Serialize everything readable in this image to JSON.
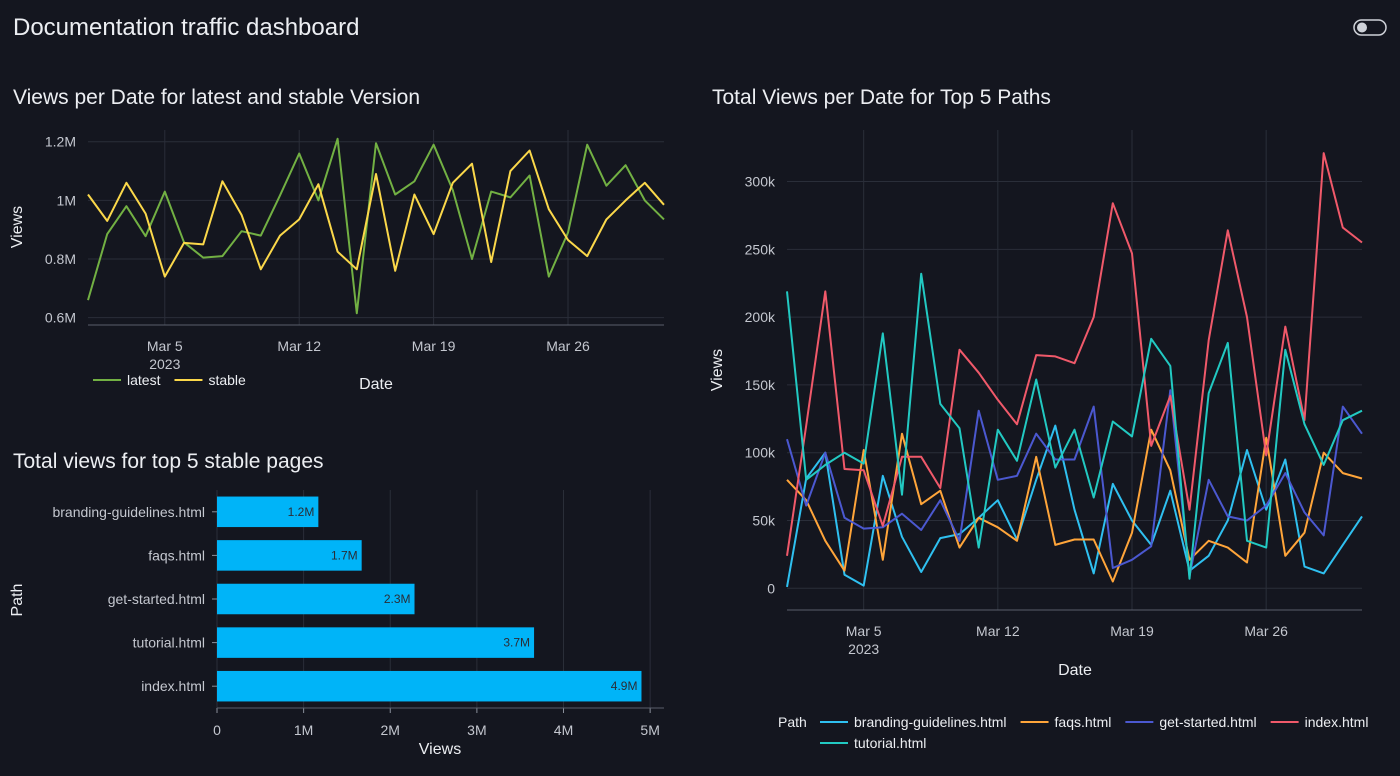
{
  "title": "Documentation traffic dashboard",
  "chart_data": [
    {
      "type": "line",
      "title": "Views per Date for latest and stable Version",
      "xlabel": "Date",
      "ylabel": "Views",
      "x": [
        "2023-03-01",
        "2023-03-02",
        "2023-03-03",
        "2023-03-04",
        "2023-03-05",
        "2023-03-06",
        "2023-03-07",
        "2023-03-08",
        "2023-03-09",
        "2023-03-10",
        "2023-03-11",
        "2023-03-12",
        "2023-03-13",
        "2023-03-14",
        "2023-03-15",
        "2023-03-16",
        "2023-03-17",
        "2023-03-18",
        "2023-03-19",
        "2023-03-20",
        "2023-03-21",
        "2023-03-22",
        "2023-03-23",
        "2023-03-24",
        "2023-03-25",
        "2023-03-26",
        "2023-03-27",
        "2023-03-28",
        "2023-03-29",
        "2023-03-30",
        "2023-03-31"
      ],
      "xlim": [
        "2023-03-01",
        "2023-03-31"
      ],
      "xticks": [
        {
          "value": "2023-03-05",
          "label": "Mar 5\n2023"
        },
        {
          "value": "2023-03-12",
          "label": "Mar 12"
        },
        {
          "value": "2023-03-19",
          "label": "Mar 19"
        },
        {
          "value": "2023-03-26",
          "label": "Mar 26"
        }
      ],
      "ylim": [
        575000,
        1240000
      ],
      "yticks": [
        {
          "value": 600000,
          "label": "0.6M"
        },
        {
          "value": 800000,
          "label": "0.8M"
        },
        {
          "value": 1000000,
          "label": "1M"
        },
        {
          "value": 1200000,
          "label": "1.2M"
        }
      ],
      "grid": true,
      "legend": "bottom-left",
      "series": [
        {
          "name": "latest",
          "color": "#72b043",
          "values": [
            660000,
            885000,
            980000,
            878000,
            1030000,
            857000,
            805000,
            810000,
            895000,
            880000,
            1017000,
            1160000,
            1000000,
            1210000,
            615000,
            1195000,
            1020000,
            1065000,
            1190000,
            1035000,
            800000,
            1030000,
            1010000,
            1085000,
            740000,
            890000,
            1190000,
            1050000,
            1120000,
            1000000,
            935000
          ]
        },
        {
          "name": "stable",
          "color": "#fbd84a",
          "values": [
            1020000,
            930000,
            1060000,
            955000,
            740000,
            855000,
            850000,
            1065000,
            950000,
            765000,
            880000,
            935000,
            1055000,
            825000,
            765000,
            1090000,
            760000,
            1020000,
            885000,
            1060000,
            1125000,
            790000,
            1100000,
            1170000,
            970000,
            865000,
            810000,
            935000,
            1000000,
            1060000,
            985000
          ]
        }
      ]
    },
    {
      "type": "bar",
      "orientation": "horizontal",
      "title": "Total views for top 5 stable pages",
      "xlabel": "Views",
      "ylabel": "Path",
      "categories": [
        "branding-guidelines.html",
        "faqs.html",
        "get-started.html",
        "tutorial.html",
        "index.html"
      ],
      "values": [
        1170000,
        1670000,
        2280000,
        3660000,
        4900000
      ],
      "value_labels": [
        "1.2M",
        "1.7M",
        "2.3M",
        "3.7M",
        "4.9M"
      ],
      "color": "#00b4f8",
      "xlim": [
        0,
        5160000
      ],
      "xticks": [
        0,
        {
          "value": 1000000,
          "label": "1M"
        },
        {
          "value": 2000000,
          "label": "2M"
        },
        {
          "value": 3000000,
          "label": "3M"
        },
        {
          "value": 4000000,
          "label": "4M"
        },
        {
          "value": 5000000,
          "label": "5M"
        }
      ],
      "grid": true
    },
    {
      "type": "line",
      "title": "Total Views per Date for Top 5 Paths",
      "xlabel": "Date",
      "ylabel": "Views",
      "legend_title": "Path",
      "x": [
        "2023-03-01",
        "2023-03-02",
        "2023-03-03",
        "2023-03-04",
        "2023-03-05",
        "2023-03-06",
        "2023-03-07",
        "2023-03-08",
        "2023-03-09",
        "2023-03-10",
        "2023-03-11",
        "2023-03-12",
        "2023-03-13",
        "2023-03-14",
        "2023-03-15",
        "2023-03-16",
        "2023-03-17",
        "2023-03-18",
        "2023-03-19",
        "2023-03-20",
        "2023-03-21",
        "2023-03-22",
        "2023-03-23",
        "2023-03-24",
        "2023-03-25",
        "2023-03-26",
        "2023-03-27",
        "2023-03-28",
        "2023-03-29",
        "2023-03-30",
        "2023-03-31"
      ],
      "xlim": [
        "2023-03-01",
        "2023-03-31"
      ],
      "xticks": [
        {
          "value": "2023-03-05",
          "label": "Mar 5\n2023"
        },
        {
          "value": "2023-03-12",
          "label": "Mar 12"
        },
        {
          "value": "2023-03-19",
          "label": "Mar 19"
        },
        {
          "value": "2023-03-26",
          "label": "Mar 26"
        }
      ],
      "ylim": [
        -16000,
        338000
      ],
      "yticks": [
        0,
        {
          "value": 50000,
          "label": "50k"
        },
        {
          "value": 100000,
          "label": "100k"
        },
        {
          "value": 150000,
          "label": "150k"
        },
        {
          "value": 200000,
          "label": "200k"
        },
        {
          "value": 250000,
          "label": "250k"
        },
        {
          "value": 300000,
          "label": "300k"
        }
      ],
      "grid": true,
      "legend": "bottom",
      "series": [
        {
          "name": "branding-guidelines.html",
          "color": "#2fc0f0",
          "values": [
            1000,
            81000,
            100000,
            10000,
            2000,
            83000,
            38000,
            12000,
            37000,
            40000,
            52000,
            65000,
            36000,
            80000,
            120000,
            58000,
            11000,
            77000,
            50000,
            32000,
            72000,
            13000,
            24000,
            50000,
            102000,
            58000,
            95000,
            16000,
            11000,
            32000,
            53000
          ]
        },
        {
          "name": "faqs.html",
          "color": "#ffa53a",
          "values": [
            80000,
            65000,
            35000,
            13000,
            102000,
            21000,
            114000,
            62000,
            72000,
            30000,
            52000,
            45000,
            35000,
            97000,
            32000,
            36000,
            36000,
            5000,
            41000,
            117000,
            87000,
            21000,
            35000,
            30000,
            19000,
            111000,
            24000,
            41000,
            100000,
            85000,
            81000
          ]
        },
        {
          "name": "get-started.html",
          "color": "#4b58d0",
          "values": [
            110000,
            61000,
            100000,
            52000,
            44000,
            45000,
            55000,
            43000,
            65000,
            35000,
            131000,
            80000,
            83000,
            114000,
            95000,
            95000,
            134000,
            15000,
            21000,
            31000,
            146000,
            9000,
            80000,
            53000,
            50000,
            61000,
            85000,
            56000,
            39000,
            134000,
            114000
          ]
        },
        {
          "name": "index.html",
          "color": "#f0596a",
          "values": [
            24000,
            120000,
            219000,
            88000,
            87000,
            46000,
            97000,
            97000,
            74000,
            176000,
            159000,
            139000,
            121000,
            172000,
            171000,
            166000,
            200000,
            284000,
            247000,
            105000,
            142000,
            58000,
            183000,
            264000,
            200000,
            98000,
            193000,
            124000,
            321000,
            266000,
            255000
          ]
        },
        {
          "name": "tutorial.html",
          "color": "#22c9c2",
          "values": [
            219000,
            80000,
            91000,
            100000,
            92000,
            188000,
            69000,
            232000,
            136000,
            118000,
            30000,
            117000,
            94000,
            154000,
            89000,
            117000,
            67000,
            123000,
            112000,
            184000,
            164000,
            7000,
            144000,
            181000,
            35000,
            30000,
            176000,
            121000,
            91000,
            124000,
            131000
          ]
        }
      ]
    }
  ]
}
